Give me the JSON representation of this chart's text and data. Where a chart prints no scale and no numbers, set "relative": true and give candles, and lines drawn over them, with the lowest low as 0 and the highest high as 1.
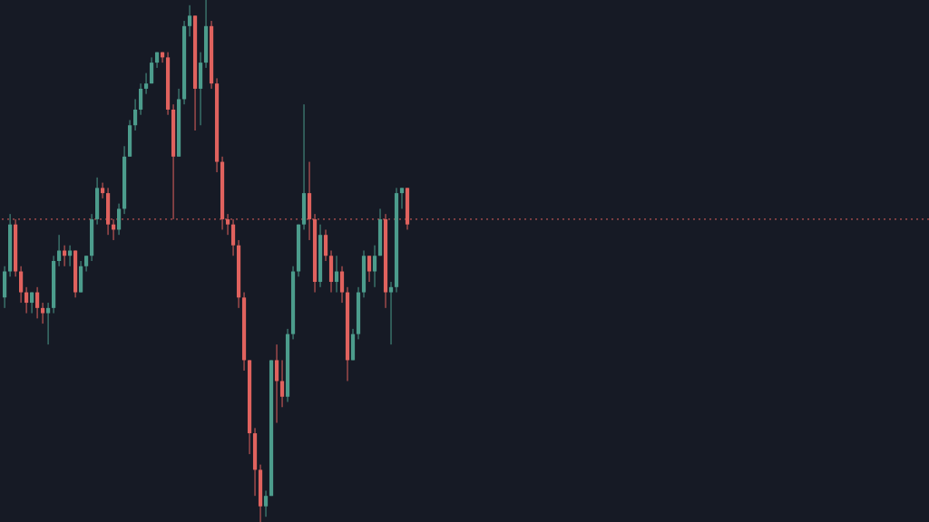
{
  "chart_data": {
    "type": "candlestick",
    "relative": true,
    "categories": [
      null,
      null,
      null,
      null,
      null,
      null,
      null,
      null,
      null,
      null,
      null,
      null,
      null,
      null,
      null,
      null,
      null,
      null,
      null,
      null,
      null,
      null,
      null,
      null,
      null,
      null,
      null,
      null,
      null,
      null,
      null,
      null,
      null,
      null,
      null,
      null,
      null,
      null,
      null,
      null,
      null,
      null,
      null,
      null,
      null,
      null,
      null,
      null,
      null,
      null,
      null,
      null,
      null,
      null,
      null,
      null,
      null,
      null,
      null,
      null,
      null,
      null,
      null,
      null,
      null,
      null,
      null,
      null,
      null,
      null,
      null,
      null,
      null,
      null,
      null,
      null,
      null,
      null,
      null,
      null,
      null,
      null,
      null,
      null,
      null,
      null,
      null,
      null,
      null,
      null,
      null,
      null,
      null,
      null,
      null,
      null,
      null,
      null,
      null,
      null,
      null,
      null,
      null,
      null,
      null,
      null,
      null,
      null,
      null,
      null,
      null,
      null,
      null,
      null,
      null,
      null,
      null,
      null,
      null,
      null,
      null,
      null,
      null,
      null,
      null,
      null,
      null,
      null,
      null,
      null,
      null,
      null,
      null,
      null,
      null,
      null,
      null,
      null,
      null,
      null,
      null,
      null,
      null,
      null,
      null,
      null,
      null,
      null,
      null,
      null,
      null,
      null,
      null,
      null,
      null,
      null,
      null,
      null,
      null,
      null,
      null,
      null,
      null,
      null,
      null,
      null,
      null,
      null,
      null,
      null
    ],
    "ohlc": [
      [
        0.43,
        0.49,
        0.41,
        0.48
      ],
      [
        0.48,
        0.59,
        0.47,
        0.57
      ],
      [
        0.57,
        0.58,
        0.47,
        0.48
      ],
      [
        0.48,
        0.49,
        0.42,
        0.44
      ],
      [
        0.44,
        0.45,
        0.4,
        0.42
      ],
      [
        0.42,
        0.44,
        0.4,
        0.44
      ],
      [
        0.44,
        0.45,
        0.39,
        0.41
      ],
      [
        0.41,
        0.42,
        0.38,
        0.4
      ],
      [
        0.4,
        0.42,
        0.34,
        0.41
      ],
      [
        0.41,
        0.51,
        0.4,
        0.5
      ],
      [
        0.5,
        0.55,
        0.49,
        0.52
      ],
      [
        0.52,
        0.53,
        0.49,
        0.51
      ],
      [
        0.51,
        0.53,
        0.49,
        0.52
      ],
      [
        0.52,
        0.52,
        0.43,
        0.44
      ],
      [
        0.44,
        0.5,
        0.44,
        0.49
      ],
      [
        0.49,
        0.51,
        0.48,
        0.51
      ],
      [
        0.51,
        0.59,
        0.5,
        0.58
      ],
      [
        0.58,
        0.66,
        0.57,
        0.64
      ],
      [
        0.64,
        0.65,
        0.62,
        0.63
      ],
      [
        0.63,
        0.64,
        0.55,
        0.57
      ],
      [
        0.57,
        0.58,
        0.54,
        0.56
      ],
      [
        0.56,
        0.61,
        0.55,
        0.6
      ],
      [
        0.6,
        0.72,
        0.59,
        0.7
      ],
      [
        0.7,
        0.77,
        0.7,
        0.76
      ],
      [
        0.76,
        0.81,
        0.75,
        0.79
      ],
      [
        0.79,
        0.84,
        0.78,
        0.83
      ],
      [
        0.83,
        0.86,
        0.82,
        0.84
      ],
      [
        0.84,
        0.89,
        0.84,
        0.88
      ],
      [
        0.88,
        0.9,
        0.87,
        0.9
      ],
      [
        0.9,
        0.9,
        0.88,
        0.89
      ],
      [
        0.89,
        0.9,
        0.78,
        0.79
      ],
      [
        0.79,
        0.8,
        0.58,
        0.7
      ],
      [
        0.7,
        0.83,
        0.7,
        0.81
      ],
      [
        0.81,
        0.96,
        0.8,
        0.95
      ],
      [
        0.95,
        0.99,
        0.93,
        0.97
      ],
      [
        0.97,
        0.97,
        0.75,
        0.83
      ],
      [
        0.83,
        0.9,
        0.76,
        0.88
      ],
      [
        0.88,
        1.0,
        0.87,
        0.95
      ],
      [
        0.95,
        0.96,
        0.83,
        0.84
      ],
      [
        0.84,
        0.85,
        0.67,
        0.69
      ],
      [
        0.69,
        0.7,
        0.56,
        0.58
      ],
      [
        0.58,
        0.59,
        0.55,
        0.57
      ],
      [
        0.57,
        0.58,
        0.51,
        0.53
      ],
      [
        0.53,
        0.54,
        0.41,
        0.43
      ],
      [
        0.43,
        0.44,
        0.29,
        0.31
      ],
      [
        0.31,
        0.31,
        0.13,
        0.17
      ],
      [
        0.17,
        0.18,
        0.05,
        0.1
      ],
      [
        0.1,
        0.11,
        0.0,
        0.03
      ],
      [
        0.03,
        0.06,
        0.01,
        0.05
      ],
      [
        0.05,
        0.31,
        0.05,
        0.31
      ],
      [
        0.31,
        0.34,
        0.19,
        0.27
      ],
      [
        0.27,
        0.31,
        0.22,
        0.24
      ],
      [
        0.24,
        0.37,
        0.23,
        0.36
      ],
      [
        0.36,
        0.49,
        0.35,
        0.48
      ],
      [
        0.48,
        0.57,
        0.47,
        0.57
      ],
      [
        0.57,
        0.8,
        0.56,
        0.63
      ],
      [
        0.63,
        0.69,
        0.54,
        0.58
      ],
      [
        0.58,
        0.59,
        0.44,
        0.46
      ],
      [
        0.46,
        0.57,
        0.45,
        0.55
      ],
      [
        0.55,
        0.56,
        0.5,
        0.51
      ],
      [
        0.51,
        0.52,
        0.44,
        0.46
      ],
      [
        0.46,
        0.51,
        0.44,
        0.48
      ],
      [
        0.48,
        0.49,
        0.42,
        0.44
      ],
      [
        0.44,
        0.45,
        0.27,
        0.31
      ],
      [
        0.31,
        0.37,
        0.31,
        0.36
      ],
      [
        0.36,
        0.45,
        0.35,
        0.44
      ],
      [
        0.44,
        0.52,
        0.43,
        0.51
      ],
      [
        0.51,
        0.51,
        0.46,
        0.48
      ],
      [
        0.48,
        0.53,
        0.45,
        0.51
      ],
      [
        0.51,
        0.6,
        0.51,
        0.58
      ],
      [
        0.58,
        0.59,
        0.41,
        0.44
      ],
      [
        0.44,
        0.46,
        0.34,
        0.45
      ],
      [
        0.45,
        0.64,
        0.44,
        0.63
      ],
      [
        0.63,
        0.64,
        0.6,
        0.64
      ],
      [
        0.64,
        0.64,
        0.56,
        0.57
      ],
      null,
      null,
      null,
      null,
      null,
      null,
      null,
      null,
      null,
      null,
      null,
      null,
      null,
      null,
      null,
      null,
      null,
      null,
      null,
      null,
      null,
      null,
      null,
      null,
      null,
      null,
      null,
      null,
      null,
      null,
      null,
      null,
      null,
      null,
      null,
      null,
      null,
      null,
      null,
      null,
      null,
      null,
      null,
      null,
      null,
      null,
      null,
      null,
      null,
      null,
      null,
      null,
      null,
      null,
      null,
      null,
      null,
      null,
      null,
      null,
      null,
      null,
      null,
      null,
      null,
      null,
      null,
      null,
      null,
      null,
      null,
      null,
      null,
      null,
      null,
      null,
      null,
      null,
      null,
      null,
      null,
      null,
      null,
      null,
      null,
      null,
      null,
      null,
      null,
      null,
      null,
      null,
      null,
      null,
      null
    ],
    "colors": [
      "#4c9c8c",
      "#4c9c8c",
      "#e0625e",
      "#e0625e",
      "#e0625e",
      "#4c9c8c",
      "#e0625e",
      "#e0625e",
      "#4c9c8c",
      "#4c9c8c",
      "#4c9c8c",
      "#e0625e",
      "#4c9c8c",
      "#e0625e",
      "#4c9c8c",
      "#4c9c8c",
      "#4c9c8c",
      "#4c9c8c",
      "#e0625e",
      "#e0625e",
      "#e0625e",
      "#4c9c8c",
      "#4c9c8c",
      "#4c9c8c",
      "#4c9c8c",
      "#4c9c8c",
      "#4c9c8c",
      "#4c9c8c",
      "#4c9c8c",
      "#e0625e",
      "#e0625e",
      "#e0625e",
      "#4c9c8c",
      "#4c9c8c",
      "#4c9c8c",
      "#e0625e",
      "#4c9c8c",
      "#4c9c8c",
      "#e0625e",
      "#e0625e",
      "#e0625e",
      "#e0625e",
      "#e0625e",
      "#e0625e",
      "#e0625e",
      "#e0625e",
      "#e0625e",
      "#e0625e",
      "#4c9c8c",
      "#4c9c8c",
      "#e0625e",
      "#e0625e",
      "#4c9c8c",
      "#4c9c8c",
      "#4c9c8c",
      "#4c9c8c",
      "#e0625e",
      "#e0625e",
      "#4c9c8c",
      "#e0625e",
      "#e0625e",
      "#4c9c8c",
      "#e0625e",
      "#e0625e",
      "#4c9c8c",
      "#4c9c8c",
      "#4c9c8c",
      "#e0625e",
      "#4c9c8c",
      "#4c9c8c",
      "#e0625e",
      "#4c9c8c",
      "#4c9c8c",
      "#4c9c8c",
      "#e0625e",
      null,
      null,
      null,
      null,
      null,
      null,
      null,
      null,
      null,
      null,
      null,
      null,
      null,
      null,
      null,
      null,
      null,
      null,
      null,
      null,
      null,
      null,
      null,
      null,
      null,
      null,
      null,
      null,
      null,
      null,
      null,
      null,
      null,
      null,
      null,
      null,
      null,
      null,
      null,
      null,
      null,
      null,
      null,
      null,
      null,
      null,
      null,
      null,
      null,
      null,
      null,
      null,
      null,
      null,
      null,
      null,
      null,
      null,
      null,
      null,
      null,
      null,
      null,
      null,
      null,
      null,
      null,
      null,
      null,
      null,
      null,
      null,
      null,
      null,
      null,
      null,
      null,
      null,
      null,
      null,
      null,
      null,
      null,
      null,
      null,
      null,
      null,
      null,
      null,
      null,
      null,
      null,
      null,
      null,
      null
    ],
    "ref_lines": [
      {
        "axis": "y",
        "value": 0.58,
        "color": "#e0625e",
        "line_style": "dotted"
      }
    ]
  }
}
